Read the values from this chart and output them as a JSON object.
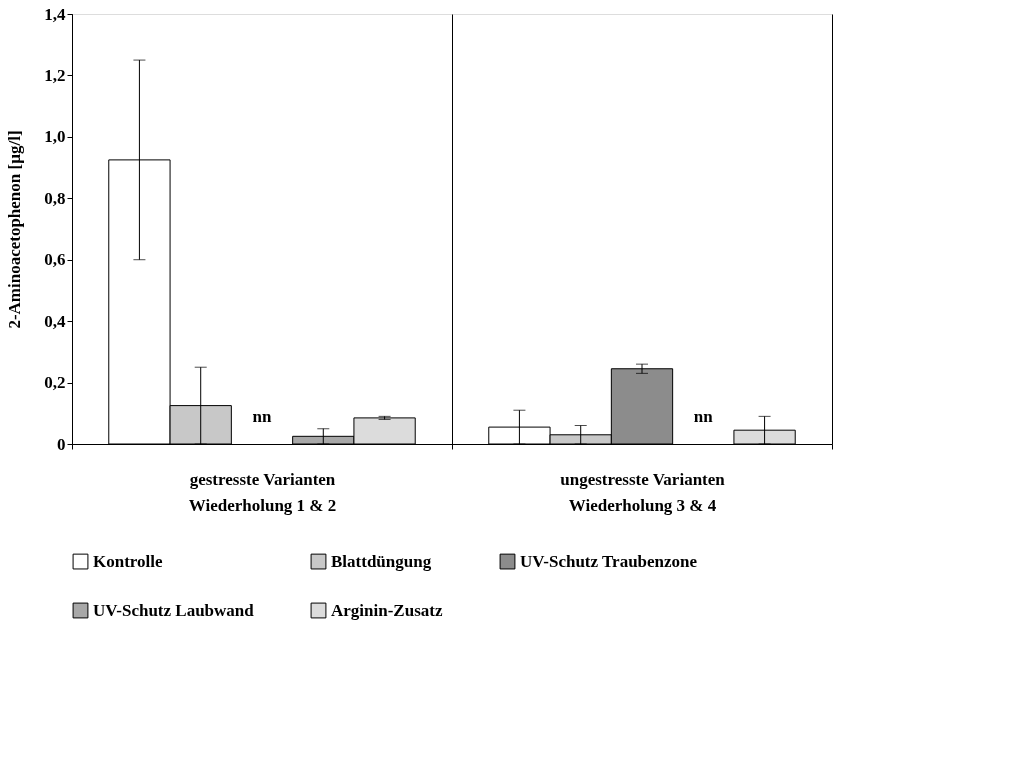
{
  "chart_data": {
    "type": "bar",
    "ylabel": "2-Aminoacetophenon [µg/l]",
    "categories": [
      "gestresste Varianten\nWiederholung 1 & 2",
      "ungestresste Varianten\nWiederholung 3 & 4"
    ],
    "series": [
      {
        "name": "Kontrolle",
        "color": "#ffffff",
        "values": [
          0.925,
          0.055
        ],
        "errors": [
          [
            0.6,
            1.25
          ],
          [
            0.0,
            0.11
          ]
        ]
      },
      {
        "name": "Blattdüngung",
        "color": "#c8c8c8",
        "values": [
          0.125,
          0.03
        ],
        "errors": [
          [
            0.0,
            0.25
          ],
          [
            0.0,
            0.06
          ]
        ]
      },
      {
        "name": "UV-Schutz Traubenzone",
        "color": "#8c8c8c",
        "values": [
          null,
          0.245
        ],
        "errors": [
          null,
          [
            0.23,
            0.26
          ]
        ]
      },
      {
        "name": "UV-Schutz Laubwand",
        "color": "#a8a8a8",
        "values": [
          0.025,
          null
        ],
        "errors": [
          [
            0.0,
            0.05
          ],
          null
        ]
      },
      {
        "name": "Arginin-Zusatz",
        "color": "#dcdcdc",
        "values": [
          0.085,
          0.045
        ],
        "errors": [
          [
            0.08,
            0.09
          ],
          [
            0.0,
            0.09
          ]
        ]
      }
    ],
    "annotations": [
      "nn",
      "nn"
    ],
    "ylim": [
      0,
      1.4
    ],
    "yticks": [
      0,
      {
        "value": 0.2,
        "label": "0,2"
      },
      {
        "value": 0.4,
        "label": "0,4"
      },
      {
        "value": 0.6,
        "label": "0,6"
      },
      {
        "value": 0.8,
        "label": "0,8"
      },
      {
        "value": 1.0,
        "label": "1,0"
      },
      {
        "value": 1.2,
        "label": "1,2"
      },
      {
        "value": 1.4,
        "label": "1,4"
      }
    ],
    "grid": "x",
    "legend": "bottom"
  }
}
